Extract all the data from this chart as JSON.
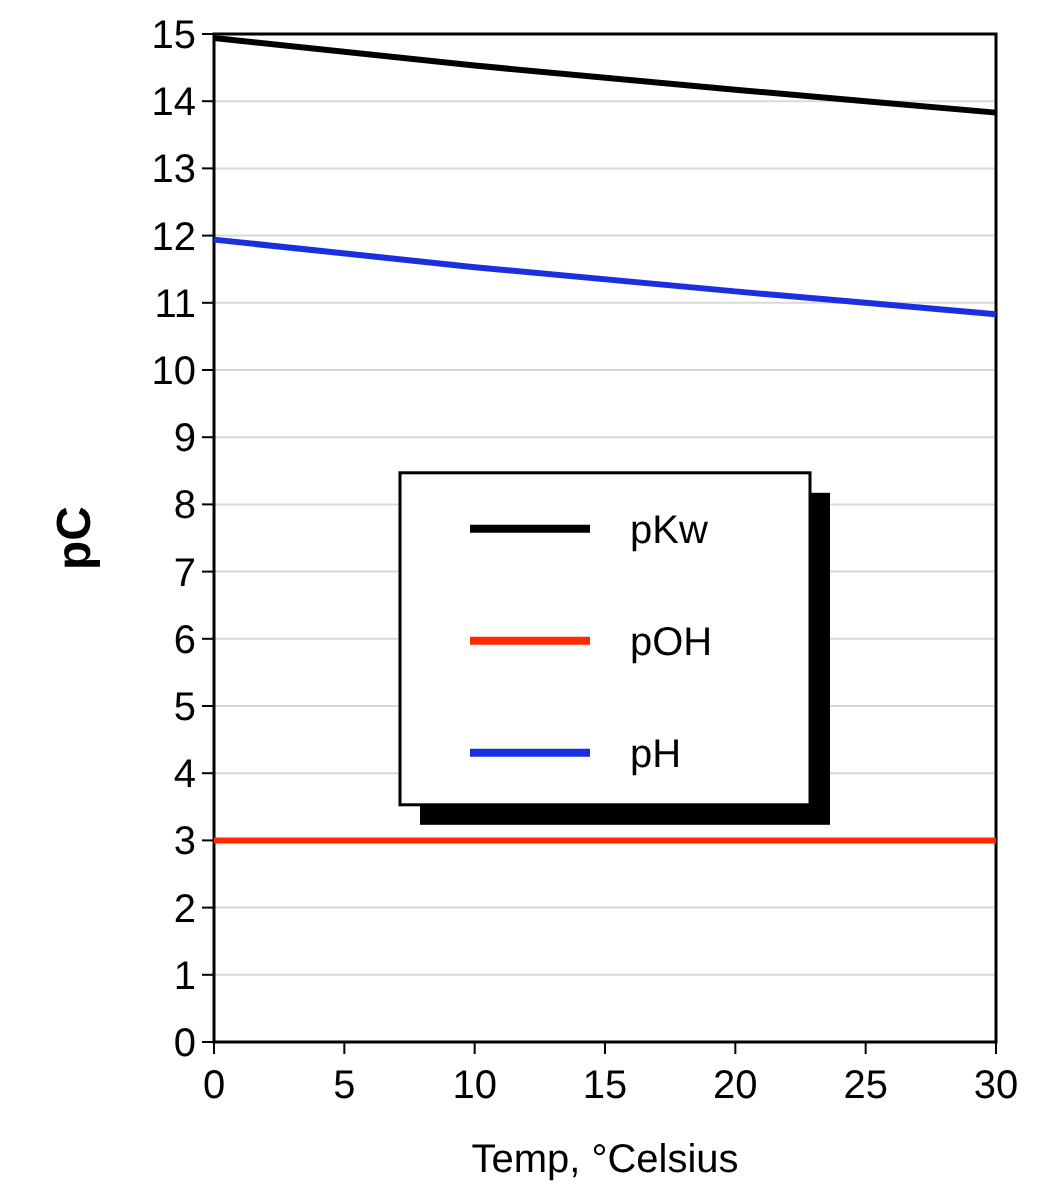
{
  "chart_data": {
    "type": "line",
    "xlabel": "Temp, °Celsius",
    "ylabel": "pC",
    "x": [
      0,
      10,
      20,
      25,
      30
    ],
    "series": [
      {
        "name": "pKw",
        "color": "#000000",
        "values": [
          14.94,
          14.53,
          14.17,
          14.0,
          13.83
        ]
      },
      {
        "name": "pOH",
        "color": "#ff2a00",
        "values": [
          3,
          3,
          3,
          3,
          3
        ]
      },
      {
        "name": "pH",
        "color": "#1a2fe0",
        "values": [
          11.94,
          11.53,
          11.17,
          11.0,
          10.83
        ]
      }
    ],
    "xlim": [
      0,
      30
    ],
    "xticks": [
      0,
      5,
      10,
      15,
      20,
      25,
      30
    ],
    "ylim": [
      0,
      15
    ],
    "yticks": [
      0,
      1,
      2,
      3,
      4,
      5,
      6,
      7,
      8,
      9,
      10,
      11,
      12,
      13,
      14,
      15
    ],
    "grid": "y",
    "legend": "center",
    "marker": "none",
    "line_style": "solid"
  }
}
